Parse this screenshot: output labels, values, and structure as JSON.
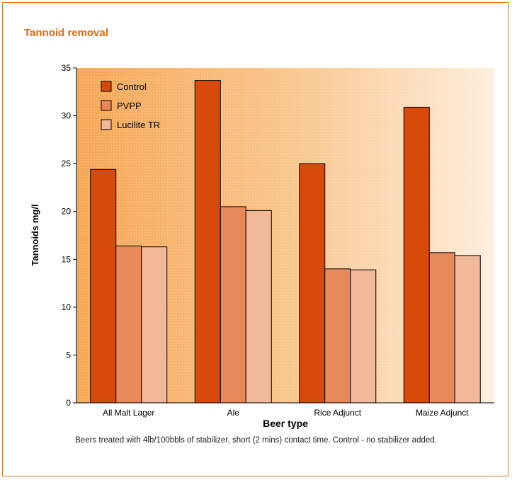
{
  "page_title": "Tannoid removal",
  "caption": "Beers treated with 4lb/100bbls of stabilizer, short (2 mins) contact time.  Control - no stabilizer added.",
  "colors": {
    "control": "#d84a0a",
    "pvpp": "#e8895a",
    "lucilite": "#f2b89a",
    "title": "#e06a10"
  },
  "chart_data": {
    "type": "bar",
    "title": "Tannoid removal",
    "xlabel": "Beer type",
    "ylabel": "Tannoids mg/l",
    "ylim": [
      0,
      35
    ],
    "yticks": [
      0,
      5,
      10,
      15,
      20,
      25,
      30,
      35
    ],
    "grid": false,
    "legend": "top-left",
    "categories": [
      "All Malt Lager",
      "Ale",
      "Rice Adjunct",
      "Maize Adjunct"
    ],
    "series": [
      {
        "name": "Control",
        "color": "#d84a0a",
        "values": [
          24.4,
          33.7,
          25.0,
          30.9
        ]
      },
      {
        "name": "PVPP",
        "color": "#e8895a",
        "values": [
          16.4,
          20.5,
          14.0,
          15.7
        ]
      },
      {
        "name": "Lucilite TR",
        "color": "#f2b89a",
        "values": [
          16.3,
          20.1,
          13.9,
          15.4
        ]
      }
    ]
  }
}
